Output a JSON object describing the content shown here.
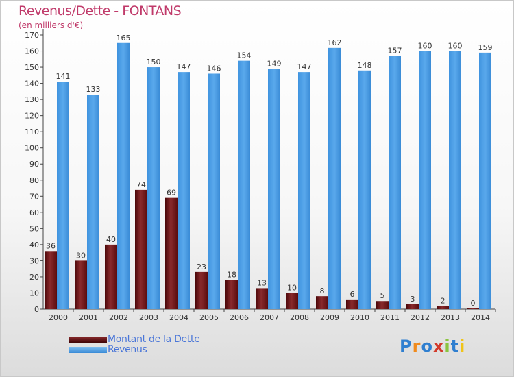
{
  "header": {
    "title": "Revenus/Dette - FONTANS",
    "subtitle": "(en milliers d'€)"
  },
  "legend": {
    "items": [
      {
        "label": "Montant de la Dette",
        "color": "#6b0f12"
      },
      {
        "label": "Revenus",
        "color": "#4d9ee4"
      }
    ]
  },
  "logo": {
    "text": "Proxiti",
    "letter_colors": [
      "#2f7fd0",
      "#f08a1c",
      "#2f7fd0",
      "#d23a2a",
      "#8ac43f",
      "#2f7fd0",
      "#f0c419"
    ]
  },
  "chart_data": {
    "type": "bar",
    "title": "Revenus/Dette - FONTANS",
    "subtitle": "(en milliers d'€)",
    "categories": [
      "2000",
      "2001",
      "2002",
      "2003",
      "2004",
      "2005",
      "2006",
      "2007",
      "2008",
      "2009",
      "2010",
      "2011",
      "2012",
      "2013",
      "2014"
    ],
    "series": [
      {
        "name": "Montant de la Dette",
        "color": "#7a1a1c",
        "values": [
          36,
          30,
          40,
          74,
          69,
          23,
          18,
          13,
          10,
          8,
          6,
          5,
          3,
          2,
          0
        ]
      },
      {
        "name": "Revenus",
        "color": "#4d9ee4",
        "values": [
          141,
          133,
          165,
          150,
          147,
          146,
          154,
          149,
          147,
          162,
          148,
          157,
          160,
          160,
          159
        ]
      }
    ],
    "ylim": [
      0,
      170
    ],
    "ytick_step": 10,
    "grid": false,
    "legend_position": "bottom-left"
  }
}
